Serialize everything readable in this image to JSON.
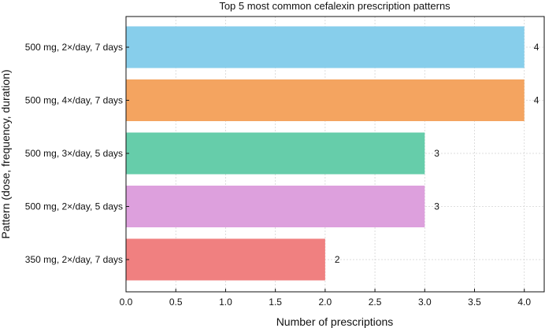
{
  "chart_data": {
    "type": "bar",
    "orientation": "horizontal",
    "title": "Top 5 most common cefalexin prescription patterns",
    "xlabel": "Number of prescriptions",
    "ylabel": "Pattern (dose, frequency, duration)",
    "categories": [
      "500 mg, 2×/day, 7 days",
      "500 mg, 4×/day, 7 days",
      "500 mg, 3×/day, 5 days",
      "500 mg, 2×/day, 5 days",
      "350 mg, 2×/day, 7 days"
    ],
    "values": [
      4,
      4,
      3,
      3,
      2
    ],
    "data_labels": [
      "4",
      "4",
      "3",
      "3",
      "2"
    ],
    "colors": [
      "#87ceeb",
      "#f4a460",
      "#66cdaa",
      "#dda0dd",
      "#f08080"
    ],
    "xlim": [
      0,
      4.2
    ],
    "xticks": [
      0,
      0.5,
      1,
      1.5,
      2,
      2.5,
      3,
      3.5,
      4
    ],
    "xtick_labels": [
      "0.0",
      "0.5",
      "1.0",
      "1.5",
      "2.0",
      "2.5",
      "3.0",
      "3.5",
      "4.0"
    ],
    "grid": true,
    "legend": "none"
  }
}
